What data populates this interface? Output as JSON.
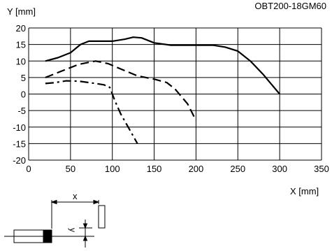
{
  "model": "OBT200-18GM60",
  "chart_data": {
    "type": "line",
    "xlabel": "X [mm]",
    "ylabel": "Y [mm]",
    "xlim": [
      0,
      350
    ],
    "ylim": [
      -20,
      20
    ],
    "x_ticks": [
      0,
      50,
      100,
      150,
      200,
      250,
      300,
      350
    ],
    "y_ticks": [
      20,
      15,
      10,
      5,
      0,
      -5,
      -10,
      -15,
      -20
    ],
    "grid": true,
    "legend": "none",
    "series": [
      {
        "style": "solid",
        "points": [
          [
            20,
            10
          ],
          [
            35,
            11
          ],
          [
            50,
            12.5
          ],
          [
            62,
            15
          ],
          [
            72,
            16
          ],
          [
            85,
            16
          ],
          [
            100,
            16
          ],
          [
            115,
            16.6
          ],
          [
            125,
            17.2
          ],
          [
            135,
            17
          ],
          [
            150,
            15.5
          ],
          [
            170,
            14.8
          ],
          [
            200,
            14.8
          ],
          [
            220,
            14.8
          ],
          [
            235,
            14.2
          ],
          [
            250,
            13
          ],
          [
            265,
            10
          ],
          [
            280,
            6
          ],
          [
            300,
            0
          ]
        ]
      },
      {
        "style": "dashed",
        "points": [
          [
            20,
            5
          ],
          [
            40,
            7
          ],
          [
            60,
            9
          ],
          [
            80,
            10
          ],
          [
            95,
            9.2
          ],
          [
            110,
            7.6
          ],
          [
            130,
            5.5
          ],
          [
            150,
            4.5
          ],
          [
            165,
            3.5
          ],
          [
            175,
            1.5
          ],
          [
            190,
            -3
          ],
          [
            200,
            -8
          ]
        ]
      },
      {
        "style": "dash-dot",
        "points": [
          [
            20,
            3.2
          ],
          [
            30,
            3.4
          ],
          [
            45,
            4
          ],
          [
            60,
            3.9
          ],
          [
            80,
            3.2
          ],
          [
            90,
            2.8
          ],
          [
            97,
            2
          ],
          [
            103,
            -2
          ],
          [
            110,
            -6
          ],
          [
            120,
            -10.5
          ],
          [
            130,
            -15
          ]
        ]
      }
    ]
  },
  "sketch": {
    "x_label": "x",
    "y_label": "y"
  }
}
